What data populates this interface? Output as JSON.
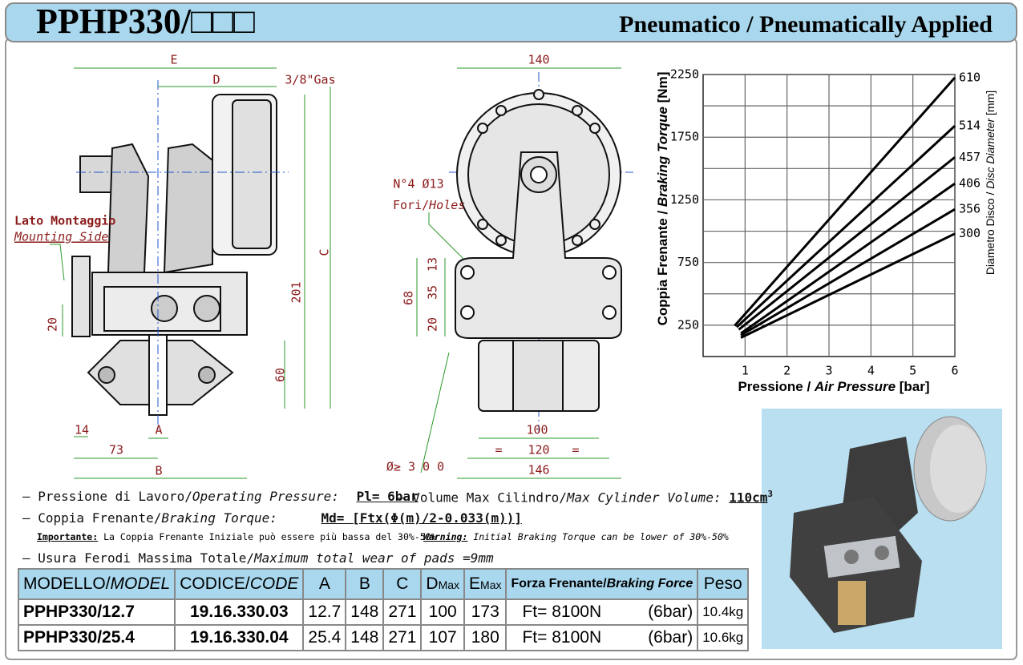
{
  "header": {
    "title": "PPHP330/□□□",
    "subtitle": "Pneumatico / Pneumatically Applied"
  },
  "drawings": {
    "side_view": {
      "labels": [
        "E",
        "D",
        "3/8\"Gas",
        "C",
        "201",
        "60",
        "20",
        "14",
        "73",
        "A",
        "B"
      ],
      "mounting_side": [
        "Lato Montaggio",
        "Mounting Side"
      ]
    },
    "front_view": {
      "labels": [
        "140",
        "N°4  Ø13",
        "13",
        "35",
        "68",
        "20",
        "100",
        "=",
        "120",
        "=",
        "146",
        "Ø≥ 3 0 0"
      ],
      "holes": [
        "Fori/",
        "Holes"
      ]
    }
  },
  "chart_data": {
    "type": "line",
    "y_label": [
      "Coppia Frenante / ",
      "Braking Torque",
      " [Nm]"
    ],
    "x_label": [
      "Pressione / ",
      "Air Pressure",
      " [bar]"
    ],
    "y2_label": [
      "Diametro Disco / ",
      "Disc Diameter",
      " [mm]"
    ],
    "xlim": [
      0,
      6
    ],
    "xticks": [
      1,
      2,
      3,
      4,
      5,
      6
    ],
    "ylim": [
      0,
      2250
    ],
    "yticks": [
      250,
      750,
      1250,
      1750,
      2250
    ],
    "ygrid": [
      250,
      500,
      750,
      1000,
      1250,
      1500,
      1750,
      2000,
      2250
    ],
    "grid": true,
    "color": "#000000",
    "series": [
      {
        "name": "610",
        "x": [
          0.75,
          6
        ],
        "values": [
          245,
          2225
        ]
      },
      {
        "name": "514",
        "x": [
          0.8,
          6
        ],
        "values": [
          235,
          1840
        ]
      },
      {
        "name": "457",
        "x": [
          0.85,
          6
        ],
        "values": [
          215,
          1590
        ]
      },
      {
        "name": "406",
        "x": [
          0.9,
          6
        ],
        "values": [
          185,
          1380
        ]
      },
      {
        "name": "356",
        "x": [
          0.9,
          6
        ],
        "values": [
          170,
          1175
        ]
      },
      {
        "name": "300",
        "x": [
          0.9,
          6
        ],
        "values": [
          150,
          980
        ]
      }
    ]
  },
  "specs": {
    "pressure": [
      "– Pressione di Lavoro/",
      "Operating Pressure:",
      "Pl= 6bar"
    ],
    "volume": [
      "– Volume Max Cilindro/",
      "Max Cylinder Volume:",
      "110cm",
      "3"
    ],
    "torque": [
      "– Coppia Frenante/",
      "Braking Torque:",
      "Md= [Ftx(Φ(m)/2-0.033(m))]"
    ],
    "note": [
      "Importante:",
      "La Coppia Frenante Iniziale può essere più bassa del 30%-50%",
      "Warning:",
      "Initial Braking Torque can be lower of 30%-50%"
    ],
    "wear": [
      "– Usura Ferodi Massima Totale/",
      "Maximum total wear of pads =9mm"
    ]
  },
  "table": {
    "header": [
      [
        "MODELLO/",
        "MODEL"
      ],
      [
        "CODICE/",
        "CODE"
      ],
      [
        "A"
      ],
      [
        "B"
      ],
      [
        "C"
      ],
      [
        "D",
        "Max"
      ],
      [
        "E",
        "Max"
      ],
      [
        "Forza Frenante/",
        "Braking Force"
      ],
      [
        "Peso"
      ]
    ],
    "rows": [
      [
        "PPHP330/12.7",
        "19.16.330.03",
        "12.7",
        "148",
        "271",
        "100",
        "173",
        [
          "Ft= 8100N",
          "(6bar)"
        ],
        "10.4kg"
      ],
      [
        "PPHP330/25.4",
        "19.16.330.04",
        "25.4",
        "148",
        "271",
        "107",
        "180",
        [
          "Ft= 8100N",
          "(6bar)"
        ],
        "10.6kg"
      ]
    ]
  }
}
